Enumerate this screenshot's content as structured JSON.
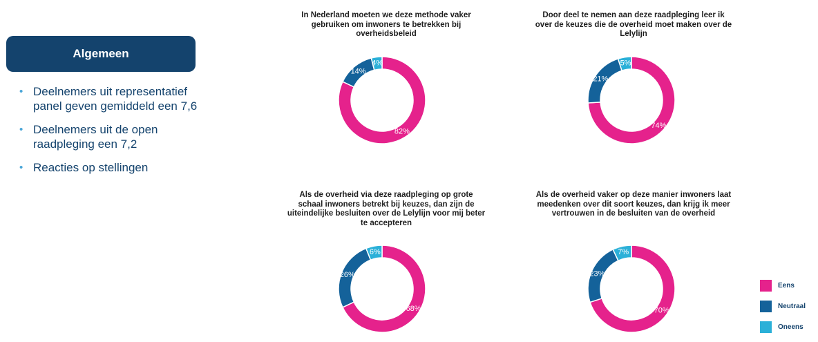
{
  "sidebar": {
    "header": "Algemeen",
    "bullets": [
      "Deelnemers uit representatief panel geven gemiddeld een 7,6",
      "Deelnemers uit de open raadpleging een 7,2",
      "Reacties op stellingen"
    ]
  },
  "colors": {
    "eens": "#e5228c",
    "neutraal": "#14629a",
    "oneens": "#2bb0d8"
  },
  "legend": [
    "Eens",
    "Neutraal",
    "Oneens"
  ],
  "chart_data": [
    {
      "type": "pie",
      "title": "In Nederland moeten we deze methode vaker gebruiken om inwoners te betrekken bij overheidsbeleid",
      "categories": [
        "Eens",
        "Neutraal",
        "Oneens"
      ],
      "values": [
        82,
        14,
        4
      ],
      "labels": [
        "82%",
        "14%",
        "4%"
      ]
    },
    {
      "type": "pie",
      "title": "Door deel te nemen aan deze raadpleging leer ik over de keuzes die de overheid moet maken over de Lelylijn",
      "categories": [
        "Eens",
        "Neutraal",
        "Oneens"
      ],
      "values": [
        74,
        21,
        5
      ],
      "labels": [
        "74%",
        "21%",
        "5%"
      ]
    },
    {
      "type": "pie",
      "title": "Als de overheid via deze raadpleging op grote schaal inwoners betrekt bij keuzes, dan zijn de uiteindelijke besluiten over de Lelylijn voor mij beter te accepteren",
      "categories": [
        "Eens",
        "Neutraal",
        "Oneens"
      ],
      "values": [
        68,
        26,
        6
      ],
      "labels": [
        "68%",
        "26%",
        "6%"
      ]
    },
    {
      "type": "pie",
      "title": "Als de overheid vaker op deze manier inwoners laat meedenken over dit soort keuzes, dan krijg ik meer vertrouwen in de besluiten van de overheid",
      "categories": [
        "Eens",
        "Neutraal",
        "Oneens"
      ],
      "values": [
        70,
        23,
        7
      ],
      "labels": [
        "70%",
        "23%",
        "7%"
      ]
    }
  ]
}
